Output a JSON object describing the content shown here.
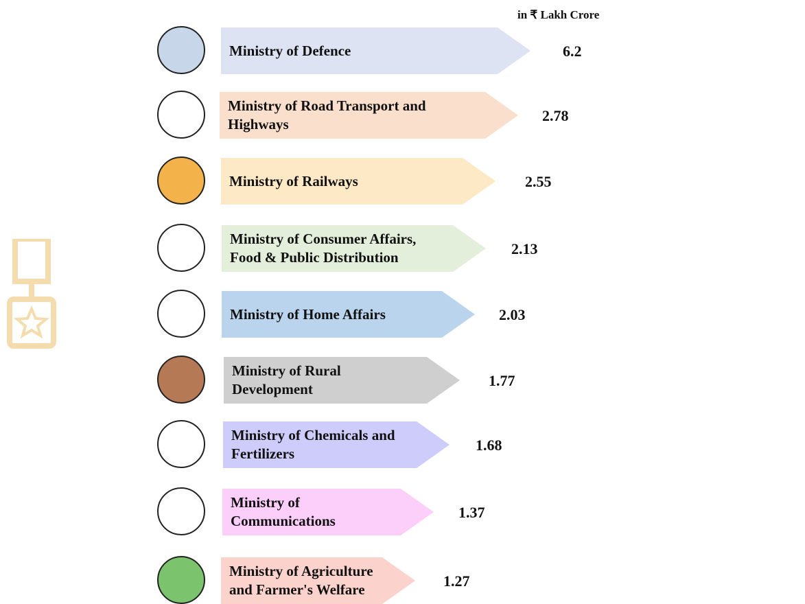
{
  "unit_note": "in ₹ Lakh Crore",
  "items": [
    {
      "lines": [
        "Ministry of Defence"
      ],
      "value": "6.2"
    },
    {
      "lines": [
        "Ministry of Road Transport and",
        "Highways"
      ],
      "value": "2.78"
    },
    {
      "lines": [
        "Ministry of Railways"
      ],
      "value": "2.55"
    },
    {
      "lines": [
        "Ministry of Consumer Affairs,",
        "Food & Public Distribution"
      ],
      "value": "2.13"
    },
    {
      "lines": [
        "Ministry of Home Affairs"
      ],
      "value": "2.03"
    },
    {
      "lines": [
        "Ministry of Rural",
        "Development"
      ],
      "value": "1.77"
    },
    {
      "lines": [
        "Ministry of Chemicals and",
        "Fertilizers"
      ],
      "value": "1.68"
    },
    {
      "lines": [
        "Ministry of",
        "Communications"
      ],
      "value": "1.37"
    },
    {
      "lines": [
        "Ministry of Agriculture",
        "and Farmer's Welfare"
      ],
      "value": "1.27"
    }
  ]
}
